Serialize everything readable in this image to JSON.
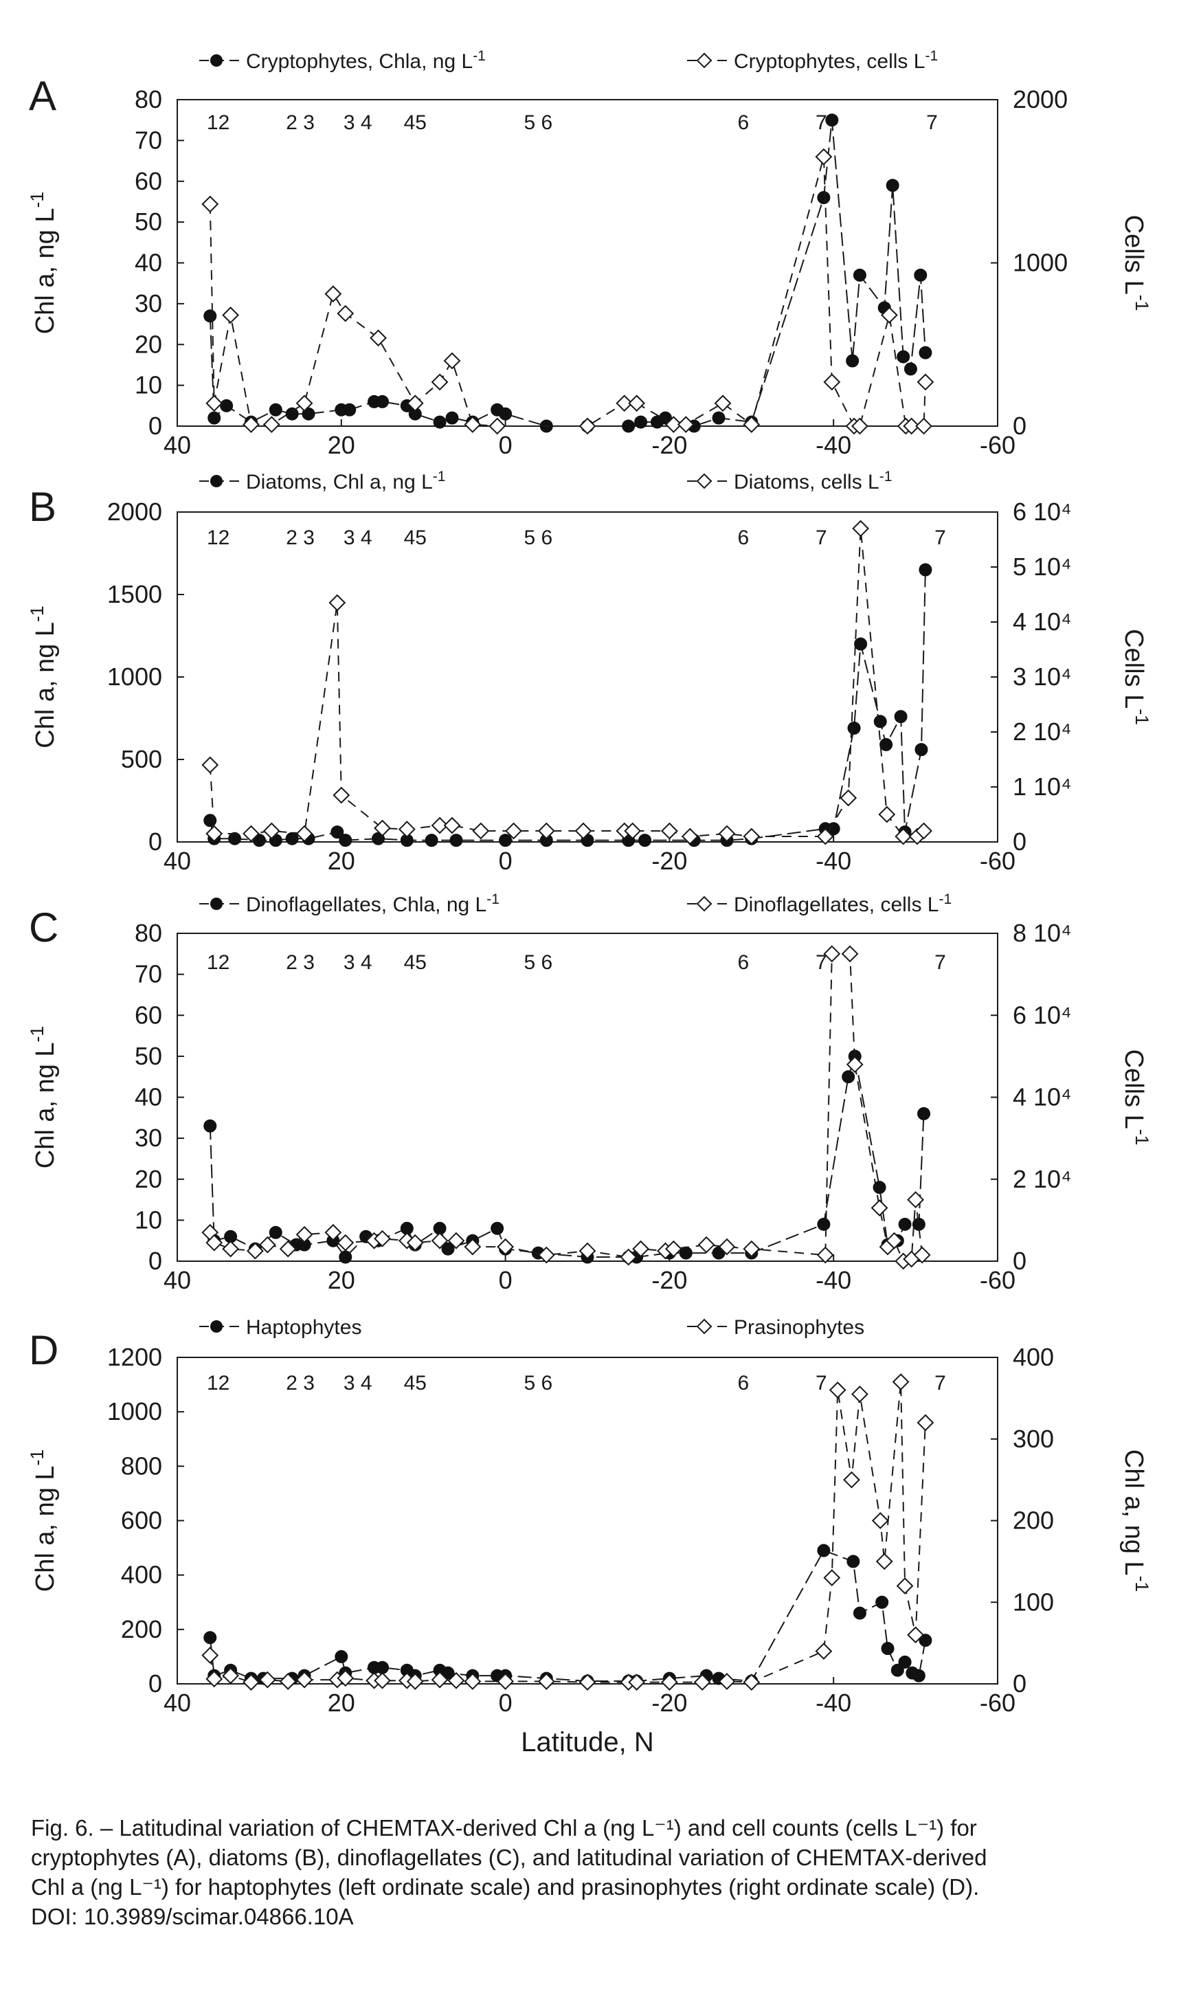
{
  "figure": {
    "x_axis_title": "Latitude, N",
    "caption_lines": [
      "Fig. 6. – Latitudinal variation of CHEMTAX-derived Chl a (ng L⁻¹) and cell counts (cells L⁻¹) for",
      "cryptophytes (A), diatoms (B), dinoflagellates (C), and latitudinal variation of CHEMTAX-derived",
      "Chl a (ng L⁻¹) for haptophytes (left ordinate scale) and prasinophytes (right ordinate scale) (D).",
      "DOI: 10.3989/scimar.04866.10A"
    ]
  },
  "chart_data": [
    {
      "panel": "A",
      "type": "line",
      "x_ticks": [
        "40",
        "20",
        "0",
        "-20",
        "-40",
        "-60"
      ],
      "xlim": [
        40,
        -60
      ],
      "y_left_label": "Chl a, ng L-1",
      "y_left_ticks": [
        "0",
        "10",
        "20",
        "30",
        "40",
        "50",
        "60",
        "70",
        "80"
      ],
      "y_left_lim": [
        0,
        80
      ],
      "y_right_label": "Cells L-1",
      "y_right_ticks": [
        "0",
        "1000",
        "2000"
      ],
      "y_right_lim": [
        0,
        2000
      ],
      "station_labels": [
        {
          "text": "12",
          "x": 35
        },
        {
          "text": "2 3",
          "x": 25
        },
        {
          "text": "3 4",
          "x": 18
        },
        {
          "text": "45",
          "x": 11
        },
        {
          "text": "5 6",
          "x": -4
        },
        {
          "text": "6",
          "x": -29
        },
        {
          "text": "7",
          "x": -38.5
        },
        {
          "text": "7",
          "x": -52
        }
      ],
      "series": [
        {
          "name": "Cryptophytes, Chla, ng L-1",
          "marker": "filled-circle",
          "dash": "long",
          "axis": "left",
          "x": [
            36,
            35.5,
            34,
            31,
            28,
            26,
            24,
            20,
            19,
            16,
            15,
            12,
            11,
            8,
            6.5,
            4,
            1,
            0,
            -5,
            -10,
            -15,
            -16.5,
            -18.5,
            -19.5,
            -23,
            -26,
            -30,
            -38.8,
            -39.8,
            -42.3,
            -43.2,
            -46.2,
            -47.2,
            -48.5,
            -49.4,
            -50.6,
            -51.2
          ],
          "y": [
            27,
            2,
            5,
            1,
            4,
            3,
            3,
            4,
            4,
            6,
            6,
            5,
            3,
            1,
            2,
            1,
            4,
            3,
            0,
            0,
            0,
            1,
            1,
            2,
            0,
            2,
            1,
            56,
            75,
            16,
            37,
            29,
            59,
            17,
            14,
            37,
            18
          ]
        },
        {
          "name": "Cryptophytes, cells L-1",
          "marker": "open-diamond",
          "dash": "long",
          "axis": "right",
          "x": [
            36,
            35.5,
            33.5,
            31,
            28.5,
            24.5,
            21,
            19.5,
            15.5,
            11,
            8,
            6.5,
            4,
            1,
            -10,
            -14.5,
            -16,
            -20.5,
            -22,
            -26.5,
            -30,
            -38.8,
            -39.8,
            -42.5,
            -43.2,
            -46.8,
            -48.8,
            -49.5,
            -51,
            -51.2
          ],
          "y": [
            1360,
            140,
            680,
            10,
            10,
            140,
            810,
            690,
            540,
            140,
            270,
            400,
            10,
            0,
            0,
            140,
            140,
            10,
            10,
            140,
            10,
            1650,
            270,
            0,
            0,
            680,
            0,
            0,
            0,
            270
          ]
        }
      ]
    },
    {
      "panel": "B",
      "type": "line",
      "x_ticks": [
        "40",
        "20",
        "0",
        "-20",
        "-40",
        "-60"
      ],
      "xlim": [
        40,
        -60
      ],
      "y_left_label": "Chl a, ng L-1",
      "y_left_ticks": [
        "0",
        "500",
        "1000",
        "1500",
        "2000"
      ],
      "y_left_lim": [
        0,
        2000
      ],
      "y_right_label": "Cells L-1",
      "y_right_ticks": [
        "0",
        "1 10⁴",
        "2 10⁴",
        "3 10⁴",
        "4 10⁴",
        "5 10⁴",
        "6 10⁴"
      ],
      "y_right_lim": [
        0,
        60000
      ],
      "station_labels": [
        {
          "text": "12",
          "x": 35
        },
        {
          "text": "2 3",
          "x": 25
        },
        {
          "text": "3 4",
          "x": 18
        },
        {
          "text": "45",
          "x": 11
        },
        {
          "text": "5 6",
          "x": -4
        },
        {
          "text": "6",
          "x": -29
        },
        {
          "text": "7",
          "x": -38.5
        },
        {
          "text": "7",
          "x": -53
        }
      ],
      "series": [
        {
          "name": "Diatoms, Chl a, ng L-1",
          "marker": "filled-circle",
          "dash": "long",
          "axis": "left",
          "x": [
            36,
            35.5,
            33,
            30,
            28,
            26,
            24,
            20.5,
            19.5,
            15.5,
            12,
            9,
            6,
            0,
            -5,
            -10,
            -15,
            -17,
            -23,
            -27,
            -30,
            -39,
            -40,
            -42.5,
            -43.3,
            -45.7,
            -46.4,
            -48.2,
            -48.7,
            -50.7,
            -51.2
          ],
          "y": [
            130,
            20,
            20,
            10,
            10,
            20,
            20,
            60,
            10,
            20,
            10,
            10,
            10,
            10,
            10,
            10,
            10,
            10,
            10,
            10,
            20,
            80,
            80,
            690,
            1200,
            730,
            590,
            760,
            60,
            560,
            1650
          ]
        },
        {
          "name": "Diatoms, cells L-1",
          "marker": "open-diamond",
          "dash": "long",
          "axis": "right",
          "x": [
            36,
            35.5,
            31,
            28.5,
            24.5,
            20.5,
            20,
            15,
            12,
            8,
            6.5,
            3,
            -1,
            -5,
            -9.5,
            -14.5,
            -15.5,
            -20,
            -22.5,
            -27,
            -30,
            -39,
            -41.8,
            -43.3,
            -46.5,
            -48.5,
            -50.2,
            -51
          ],
          "y": [
            14000,
            1500,
            1500,
            2000,
            1500,
            43500,
            8500,
            2500,
            2300,
            3000,
            3000,
            2000,
            2000,
            2000,
            2000,
            2000,
            2000,
            2000,
            1000,
            1500,
            1000,
            1000,
            8000,
            57000,
            5000,
            1000,
            1000,
            2000
          ]
        }
      ]
    },
    {
      "panel": "C",
      "type": "line",
      "x_ticks": [
        "40",
        "20",
        "0",
        "-20",
        "-40",
        "-60"
      ],
      "xlim": [
        40,
        -60
      ],
      "y_left_label": "Chl a, ng L-1",
      "y_left_ticks": [
        "0",
        "10",
        "20",
        "30",
        "40",
        "50",
        "60",
        "70",
        "80"
      ],
      "y_left_lim": [
        0,
        80
      ],
      "y_right_label": "Cells L-1",
      "y_right_ticks": [
        "0",
        "2 10⁴",
        "4 10⁴",
        "6 10⁴",
        "8 10⁴"
      ],
      "y_right_lim": [
        0,
        80000
      ],
      "station_labels": [
        {
          "text": "12",
          "x": 35
        },
        {
          "text": "2 3",
          "x": 25
        },
        {
          "text": "3 4",
          "x": 18
        },
        {
          "text": "45",
          "x": 11
        },
        {
          "text": "5 6",
          "x": -4
        },
        {
          "text": "6",
          "x": -29
        },
        {
          "text": "7",
          "x": -38.5
        },
        {
          "text": "7",
          "x": -53
        }
      ],
      "series": [
        {
          "name": "Dinoflagellates, Chla, ng L-1",
          "marker": "filled-circle",
          "dash": "long",
          "axis": "left",
          "x": [
            36,
            35.5,
            33.5,
            30.5,
            28,
            25.5,
            24.5,
            21,
            19.5,
            17,
            15.5,
            12,
            11,
            8,
            7,
            4,
            1,
            0,
            -4,
            -10,
            -15,
            -16,
            -20,
            -22,
            -26,
            -30,
            -38.8,
            -41.8,
            -42.6,
            -45.6,
            -46.6,
            -47.8,
            -48.7,
            -50.4,
            -51
          ],
          "y": [
            33,
            5,
            6,
            3,
            7,
            4,
            4,
            5,
            1,
            6,
            5,
            8,
            4,
            8,
            3,
            5,
            8,
            3,
            2,
            1,
            1,
            1,
            2,
            2,
            2,
            2,
            9,
            45,
            50,
            18,
            4,
            5,
            9,
            9,
            36
          ]
        },
        {
          "name": "Dinoflagellates, cells L-1",
          "marker": "open-diamond",
          "dash": "long",
          "axis": "right",
          "x": [
            36,
            35.5,
            33.5,
            30.5,
            29,
            26.5,
            24.5,
            21,
            19.5,
            16,
            15,
            12,
            11,
            8,
            6,
            4,
            0,
            -5,
            -10,
            -15,
            -16.5,
            -19.5,
            -20.5,
            -24.5,
            -27,
            -30,
            -39,
            -39.8,
            -42,
            -42.6,
            -45.6,
            -46.6,
            -47.4,
            -48.5,
            -49.5,
            -50,
            -50.8
          ],
          "y": [
            7000,
            4500,
            3000,
            2500,
            4000,
            3000,
            6500,
            7000,
            4500,
            5000,
            5500,
            5000,
            4500,
            5000,
            5000,
            3500,
            3500,
            1500,
            2500,
            1000,
            3000,
            2500,
            3000,
            4000,
            3500,
            3000,
            1500,
            75000,
            75000,
            48000,
            13000,
            3500,
            5000,
            0,
            500,
            15000,
            1500
          ]
        }
      ]
    },
    {
      "panel": "D",
      "type": "line",
      "x_ticks": [
        "40",
        "20",
        "0",
        "-20",
        "-40",
        "-60"
      ],
      "xlim": [
        40,
        -60
      ],
      "y_left_label": "Chl a, ng L-1",
      "y_left_ticks": [
        "0",
        "200",
        "400",
        "600",
        "800",
        "1000",
        "1200"
      ],
      "y_left_lim": [
        0,
        1200
      ],
      "y_right_label": "Chl a, ng L-1",
      "y_right_ticks": [
        "0",
        "100",
        "200",
        "300",
        "400"
      ],
      "y_right_lim": [
        0,
        400
      ],
      "station_labels": [
        {
          "text": "12",
          "x": 35
        },
        {
          "text": "2 3",
          "x": 25
        },
        {
          "text": "3 4",
          "x": 18
        },
        {
          "text": "45",
          "x": 11
        },
        {
          "text": "5 6",
          "x": -4
        },
        {
          "text": "6",
          "x": -29
        },
        {
          "text": "7",
          "x": -38.5
        },
        {
          "text": "7",
          "x": -53
        }
      ],
      "series": [
        {
          "name": "Haptophytes",
          "marker": "filled-circle",
          "dash": "long",
          "axis": "left",
          "x": [
            36,
            35.5,
            33.5,
            31,
            29.5,
            26,
            24.5,
            20,
            19.5,
            16,
            15,
            12,
            11,
            8,
            7,
            4,
            1,
            0,
            -5,
            -10,
            -15,
            -16,
            -20,
            -24.5,
            -26,
            -30,
            -38.8,
            -42.4,
            -43.2,
            -45.9,
            -46.6,
            -47.8,
            -48.7,
            -49.6,
            -50.4,
            -51.2
          ],
          "y": [
            170,
            30,
            50,
            20,
            20,
            20,
            30,
            100,
            40,
            60,
            60,
            50,
            30,
            50,
            40,
            30,
            30,
            30,
            20,
            10,
            10,
            10,
            20,
            30,
            20,
            10,
            490,
            450,
            260,
            300,
            130,
            50,
            80,
            40,
            30,
            160
          ]
        },
        {
          "name": "Prasinophytes",
          "marker": "open-diamond",
          "dash": "long",
          "axis": "right",
          "x": [
            36,
            35.5,
            33.5,
            31,
            29,
            26.5,
            24.5,
            20.5,
            19.5,
            16,
            15,
            12,
            11,
            8,
            6,
            4,
            0,
            -5,
            -10,
            -15,
            -16,
            -20,
            -24,
            -27,
            -30,
            -38.8,
            -39.8,
            -40.5,
            -42.2,
            -43.2,
            -45.7,
            -46.2,
            -48.2,
            -48.7,
            -50,
            -51.2
          ],
          "y": [
            35,
            6,
            10,
            2,
            5,
            3,
            5,
            5,
            7,
            4,
            4,
            4,
            3,
            5,
            4,
            3,
            3,
            3,
            2,
            2,
            2,
            2,
            2,
            3,
            2,
            40,
            130,
            360,
            250,
            355,
            200,
            150,
            370,
            120,
            60,
            320
          ]
        }
      ]
    }
  ]
}
